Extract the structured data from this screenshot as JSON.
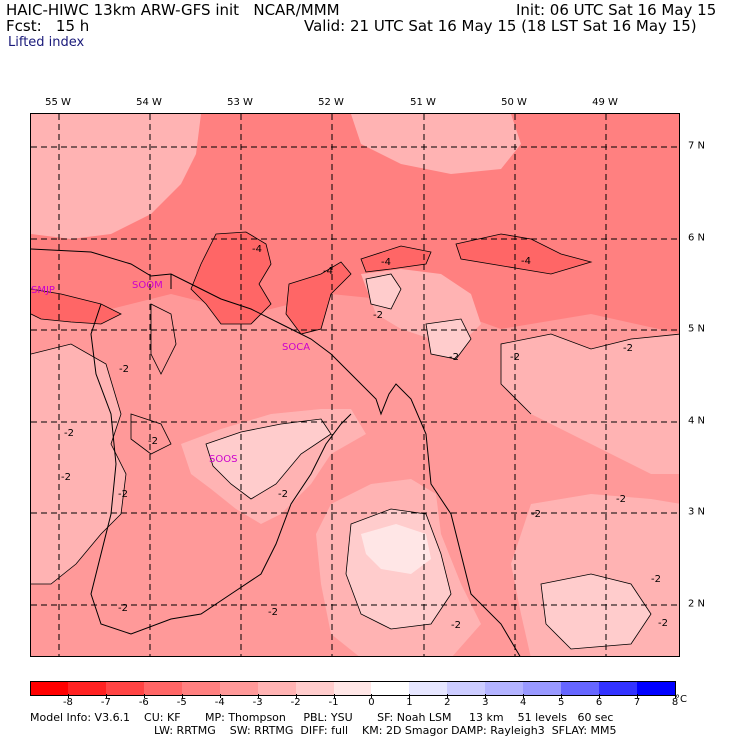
{
  "header": {
    "title_line": "HAIC-HIWC 13km ARW-GFS init   NCAR/MMM",
    "init": "Init: 06 UTC Sat 16 May 15",
    "fcst": "Fcst:   15 h",
    "valid": "Valid: 21 UTC Sat 16 May 15 (18 LST Sat 16 May 15)",
    "field": "Lifted index"
  },
  "lon_labels": [
    "55 W",
    "54 W",
    "53 W",
    "52 W",
    "51 W",
    "50 W",
    "49 W"
  ],
  "lat_labels": [
    "7 N",
    "6 N",
    "5 N",
    "4 N",
    "3 N",
    "2 N"
  ],
  "stations": [
    "SMJP",
    "SOOM",
    "SOCA",
    "SOOS"
  ],
  "contour_labels": [
    "-4",
    "-4",
    "-4",
    "-4",
    "-2",
    "-2",
    "-2",
    "-2",
    "-2",
    "-2",
    "-2",
    "-2",
    "-2",
    "-2",
    "-2",
    "-2",
    "-2",
    "-2",
    "-2",
    "-2",
    "-2"
  ],
  "colorbar": {
    "labels": [
      "-8",
      "-7",
      "-6",
      "-5",
      "-4",
      "-3",
      "-2",
      "-1",
      "0",
      "1",
      "2",
      "3",
      "4",
      "5",
      "6",
      "7",
      "8"
    ],
    "unit": "°C",
    "colors": [
      "#ff0000",
      "#ff2222",
      "#ff4444",
      "#ff6666",
      "#ff8080",
      "#ff9999",
      "#ffb3b3",
      "#ffcccc",
      "#ffe6e6",
      "#ffffff",
      "#e6e6ff",
      "#ccccff",
      "#b3b3ff",
      "#9999ff",
      "#6666ff",
      "#3333ff",
      "#0000ff"
    ]
  },
  "map_colors": {
    "darkest": "#ff6666",
    "dark": "#ff8080",
    "mid": "#ff9999",
    "light": "#ffb3b3",
    "lighter": "#ffcccc",
    "palest": "#ffe6e6",
    "station": "#cc00cc"
  },
  "model_info": {
    "line1": "Model Info: V3.6.1    CU: KF       MP: Thompson     PBL: YSU       SF: Noah LSM     13 km    51 levels   60 sec",
    "line2": "LW: RRTMG    SW: RRTMG  DIFF: full    KM: 2D Smagor DAMP: Rayleigh3  SFLAY: MM5"
  }
}
